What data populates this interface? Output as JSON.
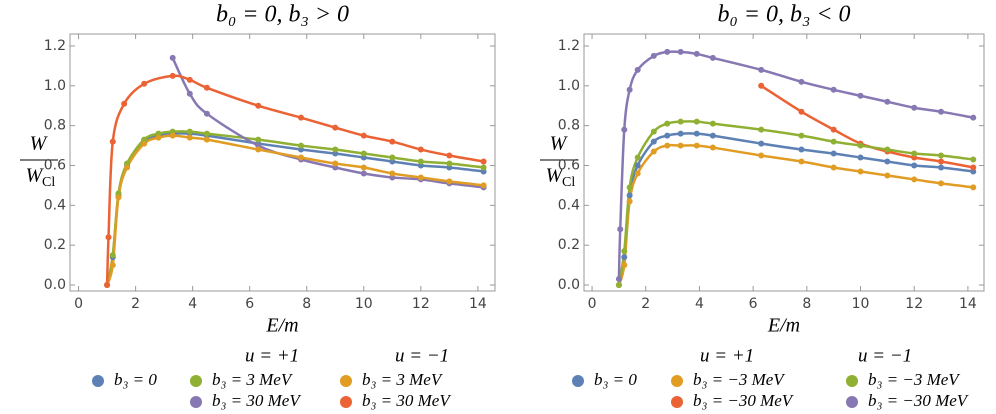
{
  "chart_data": [
    {
      "type": "line",
      "title": "b₀ = 0, b₃ > 0",
      "xlabel": "E/m",
      "ylabel": {
        "numerator": "W",
        "denominator": "W",
        "denominator_sub": "Cl"
      },
      "xlim": [
        -0.3,
        14.6
      ],
      "ylim": [
        -0.03,
        1.26
      ],
      "xticks": [
        0,
        2,
        4,
        6,
        8,
        10,
        12,
        14
      ],
      "yticks": [
        {
          "value": 0,
          "label": "0.0"
        },
        {
          "value": 0.2,
          "label": "0.2"
        },
        {
          "value": 0.4,
          "label": "0.4"
        },
        {
          "value": 0.6,
          "label": "0.6"
        },
        {
          "value": 0.8,
          "label": "0.8"
        },
        {
          "value": 1.0,
          "label": "1.0"
        },
        {
          "value": 1.2,
          "label": "1.2"
        }
      ],
      "legend_groups": [
        "u = +1",
        "u = −1"
      ],
      "series": [
        {
          "name": "b₃ = 0",
          "color": "#5e81b5",
          "x": [
            1.0,
            1.2,
            1.4,
            1.7,
            2.3,
            2.8,
            3.3,
            3.9,
            4.5,
            6.3,
            7.8,
            9.0,
            10.0,
            11.0,
            12.0,
            13.0,
            14.2
          ],
          "values": [
            0,
            0.14,
            0.45,
            0.6,
            0.72,
            0.75,
            0.76,
            0.76,
            0.75,
            0.71,
            0.68,
            0.66,
            0.64,
            0.62,
            0.6,
            0.59,
            0.57
          ]
        },
        {
          "name": "b₃ = 3 MeV",
          "color": "#8fb032",
          "x": [
            1.0,
            1.2,
            1.4,
            1.7,
            2.3,
            2.8,
            3.3,
            3.9,
            4.5,
            6.3,
            7.8,
            9.0,
            10.0,
            11.0,
            12.0,
            13.0,
            14.2
          ],
          "values": [
            0,
            0.15,
            0.46,
            0.61,
            0.73,
            0.76,
            0.77,
            0.77,
            0.76,
            0.73,
            0.7,
            0.68,
            0.66,
            0.64,
            0.62,
            0.61,
            0.59
          ]
        },
        {
          "name": "b₃ = 30 MeV",
          "color": "#8778b3",
          "x": [
            3.3,
            3.9,
            4.5,
            6.3,
            7.8,
            9.0,
            10.0,
            11.0,
            12.0,
            13.0,
            14.2
          ],
          "values": [
            1.14,
            0.96,
            0.86,
            0.7,
            0.63,
            0.59,
            0.56,
            0.54,
            0.53,
            0.51,
            0.49
          ]
        },
        {
          "name": "b₃ = 3 MeV",
          "color": "#e19c24",
          "x": [
            1.0,
            1.2,
            1.4,
            1.7,
            2.3,
            2.8,
            3.3,
            3.9,
            4.5,
            6.3,
            7.8,
            9.0,
            10.0,
            11.0,
            12.0,
            13.0,
            14.2
          ],
          "values": [
            0,
            0.1,
            0.44,
            0.59,
            0.71,
            0.74,
            0.75,
            0.74,
            0.73,
            0.68,
            0.64,
            0.61,
            0.59,
            0.56,
            0.54,
            0.52,
            0.5
          ]
        },
        {
          "name": "b₃ = 30 MeV",
          "color": "#eb6235",
          "x": [
            1.0,
            1.05,
            1.2,
            1.6,
            2.3,
            3.3,
            3.9,
            4.5,
            6.3,
            7.8,
            9.0,
            10.0,
            11.0,
            12.0,
            13.0,
            14.2
          ],
          "values": [
            0,
            0.24,
            0.72,
            0.91,
            1.01,
            1.05,
            1.03,
            0.99,
            0.9,
            0.84,
            0.79,
            0.75,
            0.72,
            0.68,
            0.65,
            0.62
          ]
        }
      ]
    },
    {
      "type": "line",
      "title": "b₀ = 0, b₃ < 0",
      "xlabel": "E/m",
      "ylabel": {
        "numerator": "W",
        "denominator": "W",
        "denominator_sub": "Cl"
      },
      "xlim": [
        -0.3,
        14.6
      ],
      "ylim": [
        -0.03,
        1.26
      ],
      "xticks": [
        0,
        2,
        4,
        6,
        8,
        10,
        12,
        14
      ],
      "yticks": [
        {
          "value": 0,
          "label": "0.0"
        },
        {
          "value": 0.2,
          "label": "0.2"
        },
        {
          "value": 0.4,
          "label": "0.4"
        },
        {
          "value": 0.6,
          "label": "0.6"
        },
        {
          "value": 0.8,
          "label": "0.8"
        },
        {
          "value": 1.0,
          "label": "1.0"
        },
        {
          "value": 1.2,
          "label": "1.2"
        }
      ],
      "legend_groups": [
        "u = +1",
        "u = −1"
      ],
      "series": [
        {
          "name": "b₃ = 0",
          "color": "#5e81b5",
          "x": [
            1.0,
            1.2,
            1.4,
            1.7,
            2.3,
            2.8,
            3.3,
            3.9,
            4.5,
            6.3,
            7.8,
            9.0,
            10.0,
            11.0,
            12.0,
            13.0,
            14.2
          ],
          "values": [
            0,
            0.14,
            0.45,
            0.6,
            0.72,
            0.75,
            0.76,
            0.76,
            0.75,
            0.71,
            0.68,
            0.66,
            0.64,
            0.62,
            0.6,
            0.59,
            0.57
          ]
        },
        {
          "name": "b₃ = −3 MeV",
          "color": "#e19c24",
          "x": [
            1.0,
            1.2,
            1.4,
            1.7,
            2.3,
            2.8,
            3.3,
            3.9,
            4.5,
            6.3,
            7.8,
            9.0,
            10.0,
            11.0,
            12.0,
            13.0,
            14.2
          ],
          "values": [
            0,
            0.1,
            0.42,
            0.56,
            0.67,
            0.7,
            0.7,
            0.7,
            0.69,
            0.65,
            0.62,
            0.59,
            0.57,
            0.55,
            0.53,
            0.51,
            0.49
          ]
        },
        {
          "name": "b₃ = −30 MeV",
          "color": "#eb6235",
          "x": [
            6.3,
            7.8,
            9.0,
            10.0,
            11.0,
            12.0,
            13.0,
            14.2
          ],
          "values": [
            1.0,
            0.87,
            0.78,
            0.71,
            0.67,
            0.64,
            0.62,
            0.59
          ]
        },
        {
          "name": "b₃ = −3 MeV",
          "color": "#8fb032",
          "x": [
            1.0,
            1.2,
            1.4,
            1.7,
            2.3,
            2.8,
            3.3,
            3.9,
            4.5,
            6.3,
            7.8,
            9.0,
            10.0,
            11.0,
            12.0,
            13.0,
            14.2
          ],
          "values": [
            0,
            0.17,
            0.49,
            0.64,
            0.77,
            0.81,
            0.82,
            0.82,
            0.81,
            0.78,
            0.75,
            0.72,
            0.7,
            0.68,
            0.66,
            0.65,
            0.63
          ]
        },
        {
          "name": "b₃ = −30 MeV",
          "color": "#8778b3",
          "x": [
            1.0,
            1.05,
            1.2,
            1.4,
            1.7,
            2.3,
            2.8,
            3.3,
            3.9,
            4.5,
            6.3,
            7.8,
            9.0,
            10.0,
            11.0,
            12.0,
            13.0,
            14.2
          ],
          "values": [
            0.03,
            0.28,
            0.78,
            0.98,
            1.08,
            1.15,
            1.17,
            1.17,
            1.16,
            1.14,
            1.08,
            1.02,
            0.98,
            0.95,
            0.92,
            0.89,
            0.87,
            0.84
          ]
        }
      ]
    }
  ]
}
